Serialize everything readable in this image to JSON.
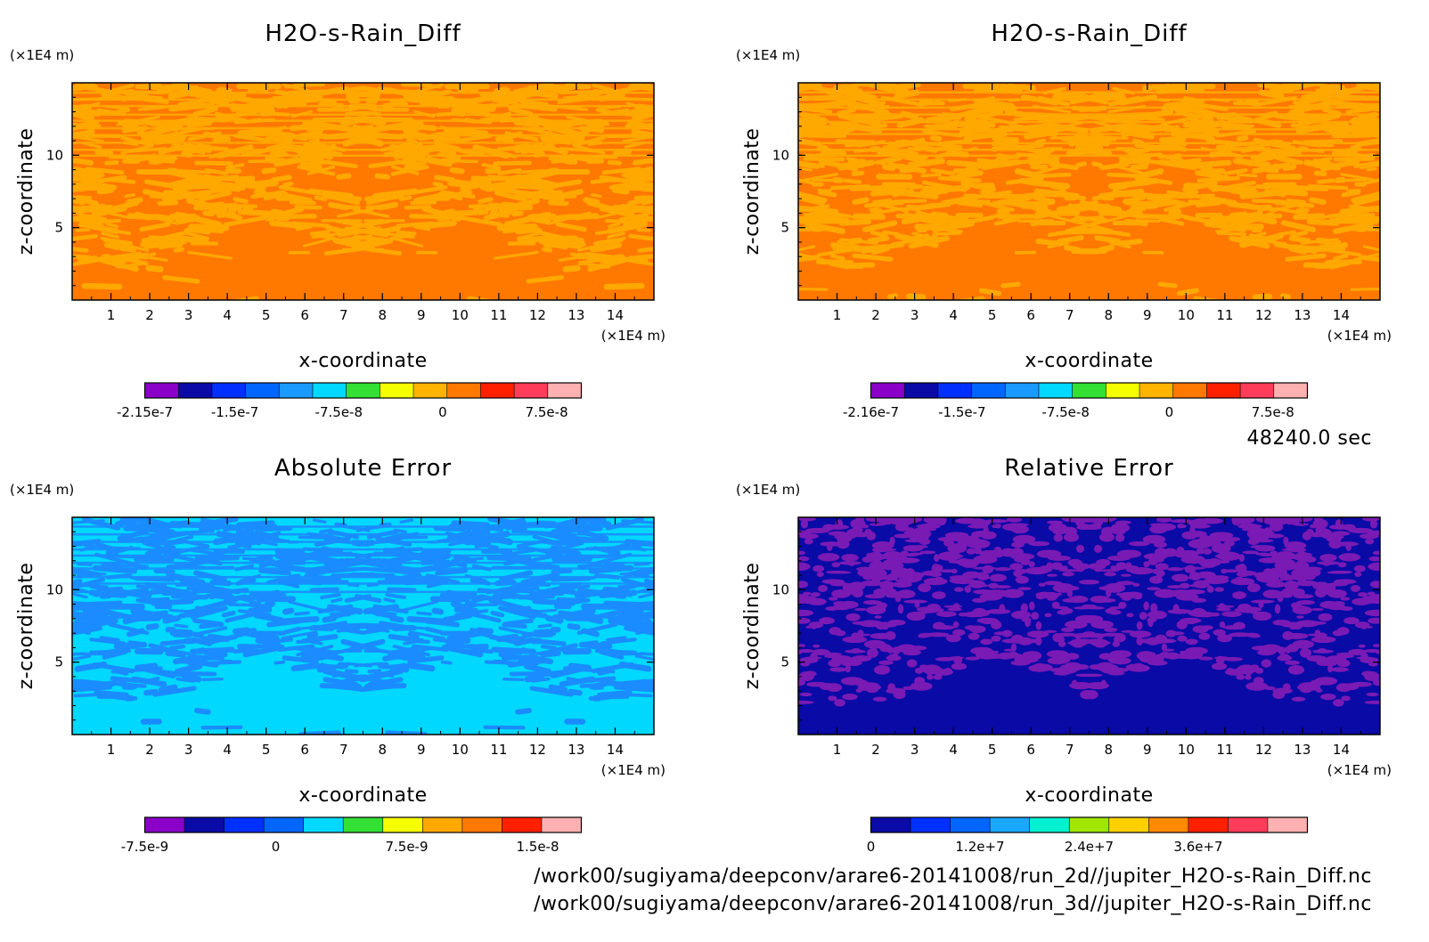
{
  "time_stamp": "48240.0 sec",
  "file_paths": [
    "/work00/sugiyama/deepconv/arare6-20141008/run_2d//jupiter_H2O-s-Rain_Diff.nc",
    "/work00/sugiyama/deepconv/arare6-20141008/run_3d//jupiter_H2O-s-Rain_Diff.nc"
  ],
  "chart_data": [
    {
      "type": "heatmap",
      "title": "H2O-s-Rain_Diff",
      "xlabel": "x-coordinate",
      "ylabel": "z-coordinate",
      "x_unit": "(×1E4 m)",
      "y_unit": "(×1E4 m)",
      "xlim": [
        0,
        15
      ],
      "ylim": [
        0,
        15
      ],
      "x_ticks": [
        "1",
        "2",
        "3",
        "4",
        "5",
        "6",
        "7",
        "8",
        "9",
        "10",
        "11",
        "12",
        "13",
        "14"
      ],
      "y_ticks": [
        "5",
        "10"
      ],
      "colorbar": {
        "min": -2.15e-07,
        "max": 1e-07,
        "labels": [
          "-2.15e-7",
          "-1.5e-7",
          "-7.5e-8",
          "0",
          "7.5e-8"
        ],
        "colors": [
          "#8a00c8",
          "#0a0aa6",
          "#0030ff",
          "#0066ff",
          "#1a9aff",
          "#00d8ff",
          "#33e033",
          "#f5ff00",
          "#ffb400",
          "#ff7800",
          "#ff2000",
          "#ff3c5a",
          "#ffb0b0"
        ]
      },
      "field_colors": {
        "background": "#ff7800",
        "pattern": "#ffa800"
      },
      "pattern": "stripes"
    },
    {
      "type": "heatmap",
      "title": "H2O-s-Rain_Diff",
      "xlabel": "x-coordinate",
      "ylabel": "z-coordinate",
      "x_unit": "(×1E4 m)",
      "y_unit": "(×1E4 m)",
      "xlim": [
        0,
        15
      ],
      "ylim": [
        0,
        15
      ],
      "x_ticks": [
        "1",
        "2",
        "3",
        "4",
        "5",
        "6",
        "7",
        "8",
        "9",
        "10",
        "11",
        "12",
        "13",
        "14"
      ],
      "y_ticks": [
        "5",
        "10"
      ],
      "colorbar": {
        "min": -2.16e-07,
        "max": 1e-07,
        "labels": [
          "-2.16e-7",
          "-1.5e-7",
          "-7.5e-8",
          "0",
          "7.5e-8"
        ],
        "colors": [
          "#8a00c8",
          "#0a0aa6",
          "#0030ff",
          "#0066ff",
          "#1a9aff",
          "#00d8ff",
          "#33e033",
          "#f5ff00",
          "#ffb400",
          "#ff7800",
          "#ff2000",
          "#ff3c5a",
          "#ffb0b0"
        ]
      },
      "field_colors": {
        "background": "#ff7800",
        "pattern": "#ffa800"
      },
      "pattern": "stripes"
    },
    {
      "type": "heatmap",
      "title": "Absolute Error",
      "xlabel": "x-coordinate",
      "ylabel": "z-coordinate",
      "x_unit": "(×1E4 m)",
      "y_unit": "(×1E4 m)",
      "xlim": [
        0,
        15
      ],
      "ylim": [
        0,
        15
      ],
      "x_ticks": [
        "1",
        "2",
        "3",
        "4",
        "5",
        "6",
        "7",
        "8",
        "9",
        "10",
        "11",
        "12",
        "13",
        "14"
      ],
      "y_ticks": [
        "5",
        "10"
      ],
      "colorbar": {
        "min": -7.5e-09,
        "max": 1.75e-08,
        "labels": [
          "-7.5e-9",
          "0",
          "7.5e-9",
          "1.5e-8"
        ],
        "colors": [
          "#8a00c8",
          "#0a0aa6",
          "#0030ff",
          "#0066ff",
          "#00d8ff",
          "#33e033",
          "#f5ff00",
          "#ffa800",
          "#ff7800",
          "#ff2000",
          "#ffb0b0"
        ]
      },
      "field_colors": {
        "background": "#00d8ff",
        "pattern": "#1a8cff"
      },
      "pattern": "stripes"
    },
    {
      "type": "heatmap",
      "title": "Relative Error",
      "xlabel": "x-coordinate",
      "ylabel": "z-coordinate",
      "x_unit": "(×1E4 m)",
      "y_unit": "(×1E4 m)",
      "xlim": [
        0,
        15
      ],
      "ylim": [
        0,
        15
      ],
      "x_ticks": [
        "1",
        "2",
        "3",
        "4",
        "5",
        "6",
        "7",
        "8",
        "9",
        "10",
        "11",
        "12",
        "13",
        "14"
      ],
      "y_ticks": [
        "5",
        "10"
      ],
      "colorbar": {
        "min": 0,
        "max": 48000000.0,
        "labels": [
          "0",
          "1.2e+7",
          "2.4e+7",
          "3.6e+7"
        ],
        "colors": [
          "#0a0aa6",
          "#0030ff",
          "#0066ff",
          "#1aa8ff",
          "#00f0d0",
          "#a0e600",
          "#ffd000",
          "#ff8a00",
          "#ff2000",
          "#ff3c5a",
          "#ffb0b0"
        ]
      },
      "field_colors": {
        "background": "#0a0aa6",
        "pattern": "#7a1ab4"
      },
      "pattern": "blobs"
    }
  ]
}
